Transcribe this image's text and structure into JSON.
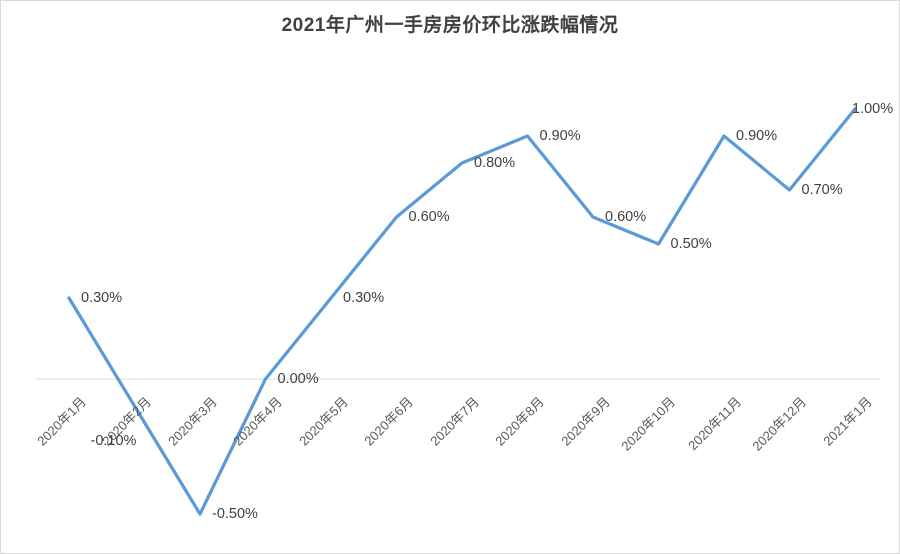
{
  "chart_data": {
    "type": "line",
    "title": "2021年广州一手房房价环比涨跌幅情况",
    "categories": [
      "2020年1月",
      "2020年2月",
      "2020年3月",
      "2020年4月",
      "2020年5月",
      "2020年6月",
      "2020年7月",
      "2020年8月",
      "2020年9月",
      "2020年10月",
      "2020年11月",
      "2020年12月",
      "2021年1月"
    ],
    "values": [
      0.3,
      -0.1,
      -0.5,
      0.0,
      0.3,
      0.6,
      0.8,
      0.9,
      0.6,
      0.5,
      0.9,
      0.7,
      1.0
    ],
    "labels": [
      "0.30%",
      "-0.10%",
      "-0.50%",
      "0.00%",
      "0.30%",
      "0.60%",
      "0.80%",
      "0.90%",
      "0.60%",
      "0.50%",
      "0.90%",
      "0.70%",
      "1.00%"
    ],
    "label_positions": [
      "right",
      "below",
      "right",
      "right",
      "right",
      "right",
      "right",
      "right",
      "right",
      "right",
      "right",
      "right",
      "end"
    ],
    "xlabel": "",
    "ylabel": "",
    "unit": "%",
    "ylim": [
      -0.65,
      1.1
    ],
    "legend": "none",
    "grid": "zero-baseline-only",
    "colors": {
      "line": "#5B9BD5",
      "zero_line": "#d9d9d9",
      "frame_border": "#d9d9d9",
      "title_text": "#404040",
      "data_label_text": "#404040",
      "axis_label_text": "#595959"
    }
  }
}
